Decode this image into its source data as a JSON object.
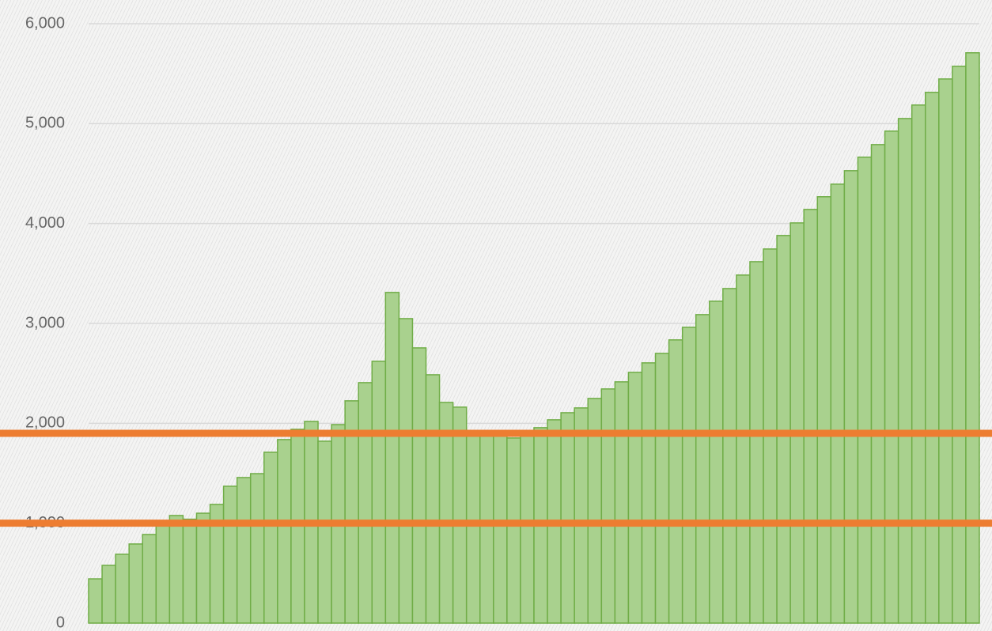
{
  "chart_data": {
    "type": "bar",
    "values": [
      443,
      578,
      689,
      792,
      887,
      1000,
      1077,
      1040,
      1100,
      1188,
      1370,
      1457,
      1496,
      1710,
      1837,
      1940,
      2019,
      1821,
      1987,
      2225,
      2407,
      2621,
      3310,
      3048,
      2755,
      2486,
      2209,
      2162,
      1890,
      1890,
      1880,
      1853,
      1900,
      1956,
      2035,
      2106,
      2154,
      2249,
      2344,
      2415,
      2510,
      2605,
      2700,
      2835,
      2961,
      3088,
      3222,
      3349,
      3484,
      3618,
      3745,
      3880,
      4006,
      4141,
      4268,
      4394,
      4529,
      4664,
      4790,
      4925,
      5051,
      5186,
      5313,
      5447,
      5574,
      5709
    ],
    "color": "#a9d18e",
    "ylim": [
      0,
      6000
    ],
    "yticks": [
      0,
      {
        "value": 1000,
        "label": "1,000"
      },
      {
        "value": 2000,
        "label": "2,000"
      },
      {
        "value": 3000,
        "label": "3,000"
      },
      {
        "value": 4000,
        "label": "4,000"
      },
      {
        "value": 5000,
        "label": "5,000"
      },
      {
        "value": 6000,
        "label": "6,000"
      }
    ],
    "grid": true,
    "reference_lines": [
      {
        "value": 1900,
        "color": "#ed7d31"
      },
      {
        "value": 1000,
        "color": "#ed7d31"
      }
    ]
  }
}
